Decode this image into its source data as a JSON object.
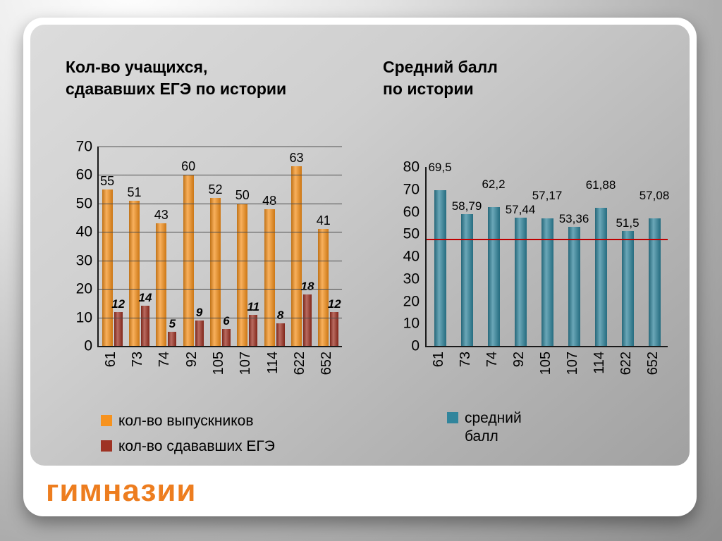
{
  "page": {
    "footer_title": "гимназии",
    "accent_orange": "#ED7D1F"
  },
  "chart_data": [
    {
      "id": "left",
      "type": "bar",
      "title": "Кол-во учащихся,\nсдававших ЕГЭ по истории",
      "categories": [
        "61",
        "73",
        "74",
        "92",
        "105",
        "107",
        "114",
        "622",
        "652"
      ],
      "series": [
        {
          "name": "кол-во выпускников",
          "color": "#F6921E",
          "values": [
            55,
            51,
            43,
            60,
            52,
            50,
            48,
            63,
            41
          ],
          "labels": [
            "55",
            "51",
            "43",
            "60",
            "52",
            "50",
            "48",
            "63",
            "41"
          ]
        },
        {
          "name": "кол-во сдававших ЕГЭ",
          "color": "#9E3223",
          "values": [
            12,
            14,
            5,
            9,
            6,
            11,
            8,
            18,
            12
          ],
          "labels": [
            "12",
            "14",
            "5",
            "9",
            "6",
            "11",
            "8",
            "18",
            "12"
          ],
          "label_style": "bold-italic"
        }
      ],
      "ylim": [
        0,
        70
      ],
      "ytick_step": 10,
      "ytick_labels": [
        "70",
        "60",
        "50",
        "40",
        "30",
        "20",
        "10",
        "0"
      ],
      "grid": true,
      "legend_position": "bottom-left"
    },
    {
      "id": "right",
      "type": "bar",
      "title": "Средний балл\nпо истории",
      "categories": [
        "61",
        "73",
        "74",
        "92",
        "105",
        "107",
        "114",
        "622",
        "652"
      ],
      "series": [
        {
          "name": "средний балл",
          "color": "#31859C",
          "values": [
            69.5,
            58.79,
            62.2,
            57.44,
            57.17,
            53.36,
            61.88,
            51.5,
            57.08
          ],
          "labels": [
            "69,5",
            "58,79",
            "62,2",
            "57,44",
            "57,17",
            "53,36",
            "61,88",
            "51,5",
            "57,08"
          ]
        }
      ],
      "ylim": [
        0,
        80
      ],
      "ytick_step": 10,
      "ytick_labels": [
        "80",
        "70",
        "60",
        "50",
        "40",
        "30",
        "20",
        "10",
        "0"
      ],
      "grid": false,
      "label_stagger": true,
      "reference_line": {
        "value": 48,
        "color": "#C00000"
      },
      "legend_position": "bottom",
      "legend_label_display": "средний\nбалл"
    }
  ]
}
